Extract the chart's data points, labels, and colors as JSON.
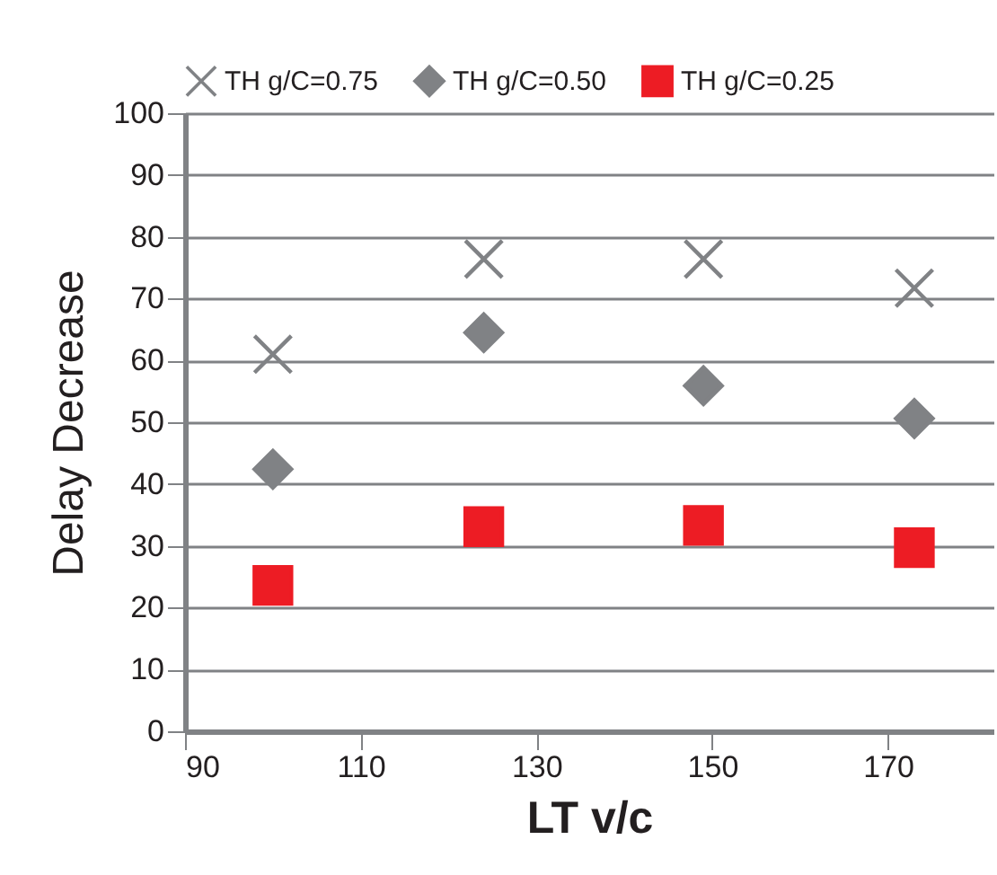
{
  "chart_data": {
    "type": "scatter",
    "xlabel": "LT v/c",
    "ylabel": "Delay Decrease",
    "x": [
      100,
      124,
      149,
      173
    ],
    "series": [
      {
        "name": "TH g/C=0.75",
        "color": "#808285",
        "marker": "cross",
        "values": [
          61.0,
          76.4,
          76.4,
          71.7
        ]
      },
      {
        "name": "TH g/C=0.50",
        "color": "#808285",
        "marker": "diamond",
        "values": [
          42.4,
          64.5,
          55.9,
          50.6
        ]
      },
      {
        "name": "TH g/C=0.25",
        "color": "#ed1c24",
        "marker": "square",
        "values": [
          23.6,
          33.1,
          33.3,
          29.7
        ]
      }
    ],
    "xlim": [
      90,
      182
    ],
    "xticks": [
      90,
      110,
      130,
      150,
      170
    ],
    "ylim": [
      0,
      100
    ],
    "yticks": [
      0,
      10,
      20,
      30,
      40,
      50,
      60,
      70,
      80,
      90,
      100
    ],
    "grid": "y",
    "legend": "top"
  }
}
